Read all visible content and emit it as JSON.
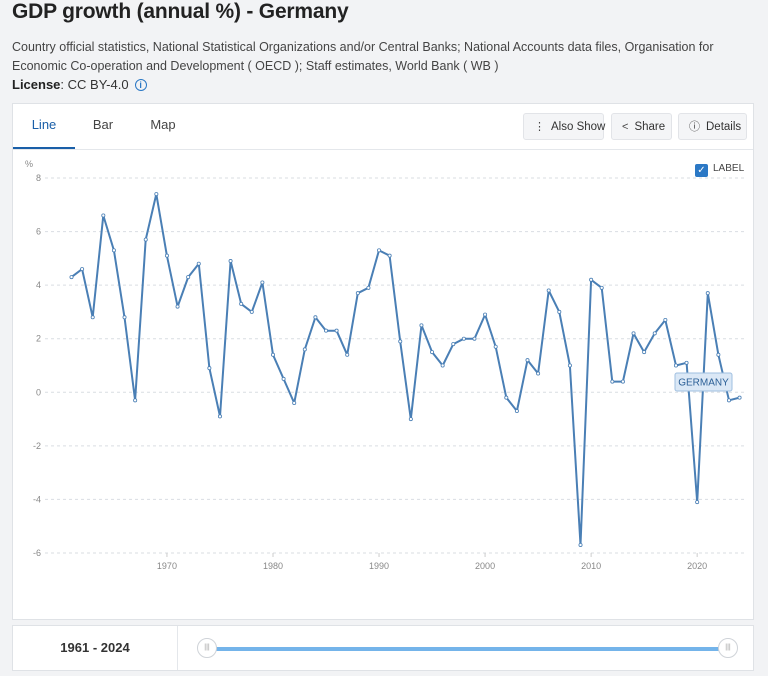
{
  "page": {
    "title": "GDP growth (annual %) - Germany",
    "source": "Country official statistics, National Statistical Organizations and/or Central Banks; National Accounts data files, Organisation for Economic Co-operation and Development ( OECD ); Staff estimates, World Bank ( WB )",
    "license_label": "License",
    "license_value": ": CC BY-4.0"
  },
  "tabs": [
    {
      "label": "Line",
      "active": true
    },
    {
      "label": "Bar",
      "active": false
    },
    {
      "label": "Map",
      "active": false
    }
  ],
  "toolbar": {
    "also_show": "Also Show",
    "share": "Share",
    "details": "Details"
  },
  "label_toggle": {
    "label": "LABEL",
    "checked": true
  },
  "range": {
    "start": "1961",
    "separator": " - ",
    "end": "2024"
  },
  "colors": {
    "line": "#4a7fb5",
    "accent": "#1a5fa8",
    "slider": "#74b4ea"
  },
  "chart_data": {
    "type": "line",
    "ylabel": "%",
    "ylim": [
      -6,
      8
    ],
    "yticks": [
      "8",
      "6",
      "4",
      "2",
      "0",
      "-2",
      "-4",
      "-6"
    ],
    "xticks": [
      "1970",
      "1980",
      "1990",
      "2000",
      "2010",
      "2020"
    ],
    "grid": true,
    "series_label": "GERMANY",
    "x": [
      1961,
      1962,
      1963,
      1964,
      1965,
      1966,
      1967,
      1968,
      1969,
      1970,
      1971,
      1972,
      1973,
      1974,
      1975,
      1976,
      1977,
      1978,
      1979,
      1980,
      1981,
      1982,
      1983,
      1984,
      1985,
      1986,
      1987,
      1988,
      1989,
      1990,
      1991,
      1992,
      1993,
      1994,
      1995,
      1996,
      1997,
      1998,
      1999,
      2000,
      2001,
      2002,
      2003,
      2004,
      2005,
      2006,
      2007,
      2008,
      2009,
      2010,
      2011,
      2012,
      2013,
      2014,
      2015,
      2016,
      2017,
      2018,
      2019,
      2020,
      2021,
      2022,
      2023,
      2024
    ],
    "values": [
      4.3,
      4.6,
      2.8,
      6.6,
      5.3,
      2.8,
      -0.3,
      5.7,
      7.4,
      5.1,
      3.2,
      4.3,
      4.8,
      0.9,
      -0.9,
      4.9,
      3.3,
      3.0,
      4.1,
      1.4,
      0.5,
      -0.4,
      1.6,
      2.8,
      2.3,
      2.3,
      1.4,
      3.7,
      3.9,
      5.3,
      5.1,
      1.9,
      -1.0,
      2.5,
      1.5,
      1.0,
      1.8,
      2.0,
      2.0,
      2.9,
      1.7,
      -0.2,
      -0.7,
      1.2,
      0.7,
      3.8,
      3.0,
      1.0,
      -5.7,
      4.2,
      3.9,
      0.4,
      0.4,
      2.2,
      1.5,
      2.2,
      2.7,
      1.0,
      1.1,
      -4.1,
      3.7,
      1.4,
      -0.3,
      -0.2
    ]
  }
}
